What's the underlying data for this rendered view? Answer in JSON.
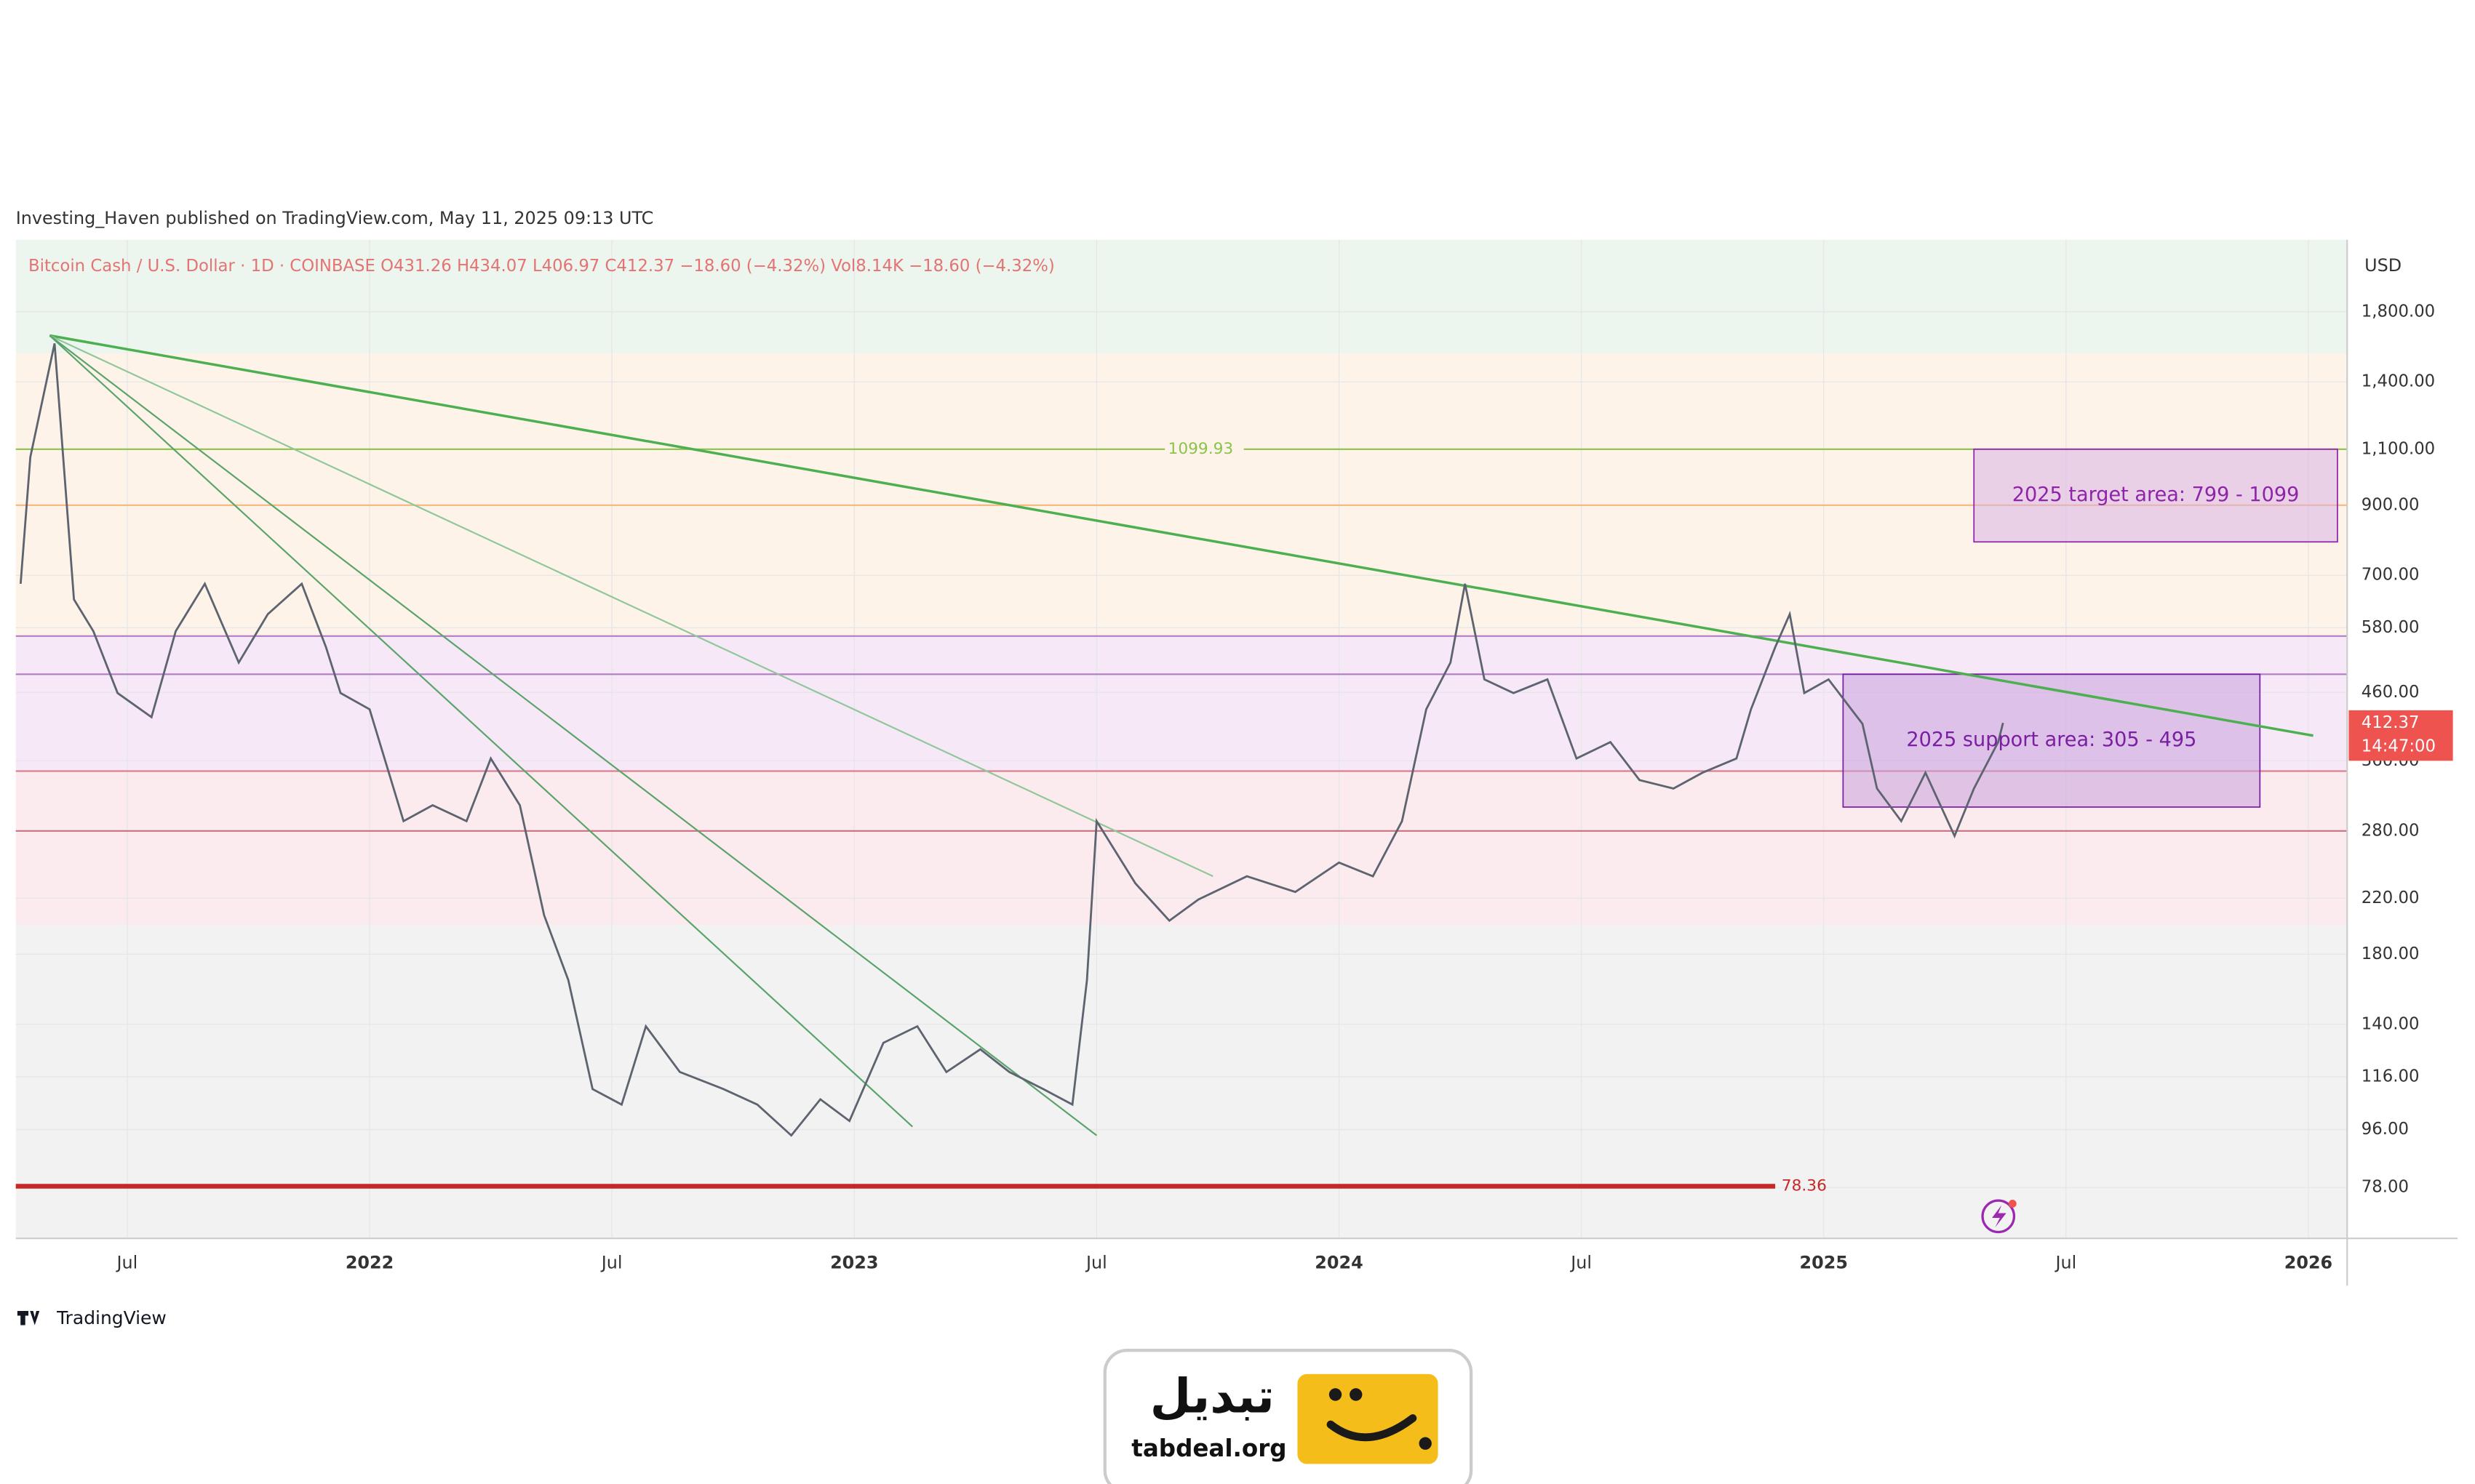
{
  "header": {
    "published": "Investing_Haven published on TradingView.com, May 11, 2025 09:13 UTC"
  },
  "chart_data": {
    "type": "line",
    "subtitle": "Bitcoin Cash / U.S. Dollar · 1D · COINBASE  O431.26  H434.07  L406.97  C412.37  −18.60 (−4.32%)  Vol8.14K  −18.60 (−4.32%)",
    "y_label": "USD",
    "log_scale": true,
    "grid": true,
    "color": "#5d6470",
    "xlim": [
      2021.27,
      2026.08
    ],
    "ylim": [
      65,
      2330
    ],
    "xticks": [
      {
        "value": 2021.5,
        "label": "Jul"
      },
      2022,
      {
        "value": 2022.5,
        "label": "Jul"
      },
      2023,
      {
        "value": 2023.5,
        "label": "Jul"
      },
      2024,
      {
        "value": 2024.5,
        "label": "Jul"
      },
      2025,
      {
        "value": 2025.5,
        "label": "Jul"
      },
      2026
    ],
    "yticks": [
      {
        "value": 78,
        "label": "78.00"
      },
      {
        "value": 96,
        "label": "96.00"
      },
      {
        "value": 116,
        "label": "116.00"
      },
      {
        "value": 140,
        "label": "140.00"
      },
      {
        "value": 180,
        "label": "180.00"
      },
      {
        "value": 220,
        "label": "220.00"
      },
      {
        "value": 280,
        "label": "280.00"
      },
      {
        "value": 360,
        "label": "360.00"
      },
      {
        "value": 460,
        "label": "460.00"
      },
      {
        "value": 580,
        "label": "580.00"
      },
      {
        "value": 700,
        "label": "700.00"
      },
      {
        "value": 900,
        "label": "900.00"
      },
      {
        "value": 1100,
        "label": "1,100.00"
      },
      {
        "value": 1400,
        "label": "1,400.00"
      },
      {
        "value": 1800,
        "label": "1,800.00"
      }
    ],
    "x": [
      2021.28,
      2021.3,
      2021.35,
      2021.39,
      2021.43,
      2021.48,
      2021.55,
      2021.6,
      2021.66,
      2021.73,
      2021.79,
      2021.86,
      2021.91,
      2021.94,
      2022.0,
      2022.07,
      2022.13,
      2022.2,
      2022.25,
      2022.31,
      2022.36,
      2022.41,
      2022.46,
      2022.52,
      2022.57,
      2022.64,
      2022.73,
      2022.8,
      2022.87,
      2022.93,
      2022.99,
      2023.06,
      2023.13,
      2023.19,
      2023.26,
      2023.32,
      2023.39,
      2023.45,
      2023.48,
      2023.5,
      2023.58,
      2023.65,
      2023.71,
      2023.81,
      2023.91,
      2024.0,
      2024.07,
      2024.13,
      2024.18,
      2024.23,
      2024.26,
      2024.3,
      2024.36,
      2024.43,
      2024.49,
      2024.56,
      2024.62,
      2024.69,
      2024.75,
      2024.82,
      2024.85,
      2024.9,
      2024.93,
      2024.96,
      2025.01,
      2025.08,
      2025.11,
      2025.16,
      2025.21,
      2025.27,
      2025.31,
      2025.36,
      2025.37
    ],
    "values": [
      679,
      1069,
      1607,
      642,
      573,
      459,
      421,
      573,
      679,
      512,
      609,
      679,
      541,
      459,
      433,
      290,
      307,
      290,
      363,
      307,
      207,
      164,
      111,
      105,
      139,
      118,
      111,
      105,
      94,
      107,
      99,
      131,
      139,
      118,
      128,
      118,
      111,
      105,
      164,
      290,
      232,
      203,
      219,
      238,
      225,
      250,
      238,
      290,
      433,
      512,
      679,
      482,
      459,
      482,
      363,
      385,
      336,
      326,
      345,
      363,
      433,
      541,
      609,
      459,
      482,
      411,
      326,
      290,
      345,
      275,
      326,
      385,
      412.37
    ],
    "bands": [
      {
        "from": 1550,
        "to": 2330,
        "color": "#ecf6ee"
      },
      {
        "from": 563,
        "to": 1550,
        "color": "#fdf3e9"
      },
      {
        "from": 347,
        "to": 563,
        "color": "#f6e8f7"
      },
      {
        "from": 200,
        "to": 347,
        "color": "#fcebee"
      },
      {
        "from": 65,
        "to": 200,
        "color": "#f2f2f2"
      }
    ],
    "levels": [
      {
        "value": 1099.93,
        "color": "#8bc34a",
        "width": 1,
        "show_value": true
      },
      {
        "value": 900,
        "color": "#f5b77a",
        "width": 1
      },
      {
        "value": 563,
        "color": "#b07cc6",
        "width": 1
      },
      {
        "value": 491,
        "color": "#b07cc6",
        "width": 1
      },
      {
        "value": 347,
        "color": "#d9808f",
        "width": 1
      },
      {
        "value": 280,
        "color": "#c9707f",
        "width": 1
      },
      {
        "value": 78.36,
        "color": "#c62828",
        "width": 3,
        "until": 2024.9,
        "show_value": true
      }
    ],
    "trendlines": [
      {
        "x": [
          2021.34,
          2026.01
        ],
        "y": [
          1653,
          394
        ],
        "color": "#4caf50",
        "width": 1.6
      },
      {
        "x": [
          2021.34,
          2023.74
        ],
        "y": [
          1653,
          238
        ],
        "color": "#8fc79a",
        "width": 1
      },
      {
        "x": [
          2021.34,
          2023.12
        ],
        "y": [
          1653,
          97
        ],
        "color": "#5aa36a",
        "width": 1
      },
      {
        "x": [
          2021.34,
          2023.5
        ],
        "y": [
          1653,
          94
        ],
        "color": "#5aa36a",
        "width": 1
      }
    ],
    "boxes": [
      {
        "label": "2025 target area: 799 - 1099",
        "x": [
          2025.31,
          2026.06
        ],
        "y": [
          789,
          1100
        ],
        "color": "#d9b3e6",
        "text_color": "#8e24aa"
      },
      {
        "label": "2025 support area: 305 - 495",
        "x": [
          2025.04,
          2025.9
        ],
        "y": [
          305,
          491
        ],
        "color": "#c9a0dc",
        "text_color": "#7b1fa2"
      }
    ],
    "last_price_label": "412.37",
    "countdown": "14:47:00",
    "last_price_color": "#ef5350"
  },
  "footer": {
    "tradingview": "TradingView",
    "brand_name": "تبدیل",
    "brand_site": "tabdeal.org"
  }
}
